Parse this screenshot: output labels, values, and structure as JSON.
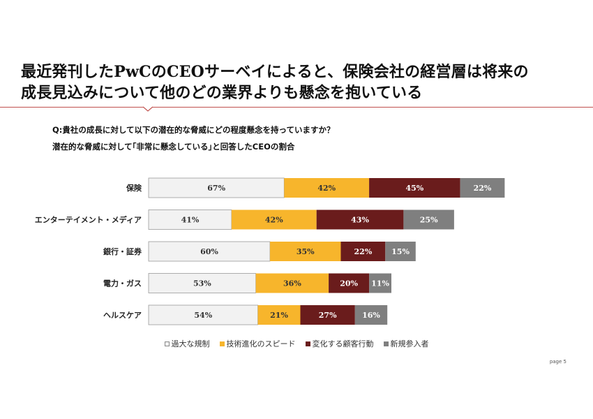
{
  "header": {
    "title_line1": "最近発刊したPwCのCEOサーベイによると、保険会社の経営層は将来の",
    "title_line2": "成長見込みについて他のどの業界よりも懸念を抱いている"
  },
  "question": "Q:貴社の成長に対して以下の潜在的な脅威にどの程度懸念を持っていますか？",
  "subtitle": "潜在的な脅威に対して｢非常に懸念している｣と回答したCEOの割合",
  "chart_data": {
    "type": "bar",
    "orientation": "horizontal",
    "stacked": true,
    "categories": [
      "保険",
      "エンターテイメント・メディア",
      "銀行・証券",
      "電力・ガス",
      "ヘルスケア"
    ],
    "series": [
      {
        "name": "過大な規制",
        "color": "#f2f2f2",
        "values": [
          67,
          41,
          60,
          53,
          54
        ]
      },
      {
        "name": "技術進化のスピード",
        "color": "#f7b52c",
        "values": [
          42,
          42,
          35,
          36,
          21
        ]
      },
      {
        "name": "変化する顧客行動",
        "color": "#6a1c1c",
        "values": [
          45,
          43,
          22,
          20,
          27
        ]
      },
      {
        "name": "新規参入者",
        "color": "#7f7f7f",
        "values": [
          22,
          25,
          15,
          11,
          16
        ]
      }
    ],
    "value_suffix": "%",
    "legend_position": "bottom",
    "grid": false
  },
  "page_label": "page 5"
}
